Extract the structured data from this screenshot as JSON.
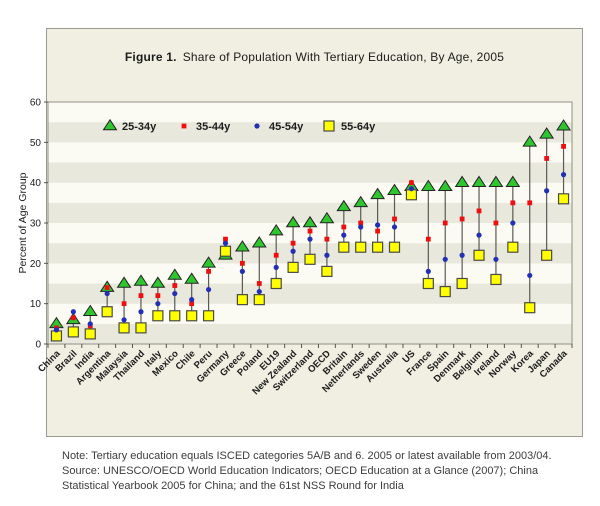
{
  "figure": {
    "title_prefix": "Figure 1.",
    "title_text": "Share of Population With Tertiary Education, By Age, 2005"
  },
  "note_lines": [
    "Note: Tertiary education equals ISCED categories 5A/B and 6. 2005 or latest available from 2003/04.",
    "Source: UNESCO/OECD World Education Indicators; OECD Education at a Glance (2007); China",
    "Statistical Yearbook 2005 for China; and the 61st NSS Round for India"
  ],
  "colors": {
    "panel_bg": "#f0efe1",
    "band_gray": "#e9e8dd",
    "band_white": "#fcfbf3",
    "axis": "#55554f",
    "connector": "#5a5a55",
    "green": "#2fc52f",
    "red": "#ee1010",
    "blue": "#2430b4",
    "yellow": "#ffff00",
    "text": "#1c1c1c"
  },
  "chart_data": {
    "type": "scatter",
    "title": "Share of Population With Tertiary Education, By Age, 2005",
    "xlabel": "",
    "ylabel": "Percent of Age Group",
    "ylim": [
      0,
      60
    ],
    "ytick_step": 10,
    "band_step": 5,
    "grid": "horizontal-bands",
    "legend_position": "inside-top-left",
    "categories": [
      "China",
      "Brazil",
      "India",
      "Argentina",
      "Malaysia",
      "Thailand",
      "Italy",
      "Mexico",
      "Chile",
      "Peru",
      "Germany",
      "Greece",
      "Poland",
      "EU19",
      "New Zealand",
      "Switzerland",
      "OECD",
      "Britain",
      "Netherlands",
      "Sweden",
      "Australia",
      "US",
      "France",
      "Spain",
      "Denmark",
      "Belgium",
      "Ireland",
      "Norway",
      "Korea",
      "Japan",
      "Canada"
    ],
    "series": [
      {
        "name": "25-34y",
        "marker": "triangle",
        "color": "#2fc52f",
        "values": [
          5,
          6,
          8,
          14,
          15,
          15.5,
          15,
          17,
          16,
          20,
          22,
          24,
          25,
          28,
          30,
          30,
          31,
          34,
          35,
          37,
          38,
          39,
          39,
          39,
          40,
          40,
          40,
          40,
          50,
          52,
          54
        ]
      },
      {
        "name": "35-44y",
        "marker": "small-square",
        "color": "#ee1010",
        "values": [
          4,
          6.5,
          4.5,
          14,
          10,
          12,
          12,
          14.5,
          10,
          18,
          26,
          20,
          15,
          22,
          25,
          28,
          26,
          29,
          30,
          28,
          31,
          40,
          26,
          30,
          31,
          33,
          30,
          35,
          35,
          46,
          49
        ]
      },
      {
        "name": "45-54y",
        "marker": "small-circle",
        "color": "#2430b4",
        "values": [
          3.5,
          8,
          5,
          12.5,
          6,
          8,
          10,
          12.5,
          11,
          13.5,
          25,
          18,
          13,
          19,
          23,
          26,
          22,
          27,
          29,
          29.5,
          29,
          38.5,
          18,
          21,
          22,
          27,
          21,
          30,
          17,
          38,
          42
        ]
      },
      {
        "name": "55-64y",
        "marker": "square",
        "color": "#ffff00",
        "values": [
          2,
          3,
          2.5,
          8,
          4,
          4,
          7,
          7,
          7,
          7,
          23,
          11,
          11,
          15,
          19,
          21,
          18,
          24,
          24,
          24,
          24,
          37,
          15,
          13,
          15,
          22,
          16,
          24,
          9,
          22,
          36
        ]
      }
    ]
  }
}
